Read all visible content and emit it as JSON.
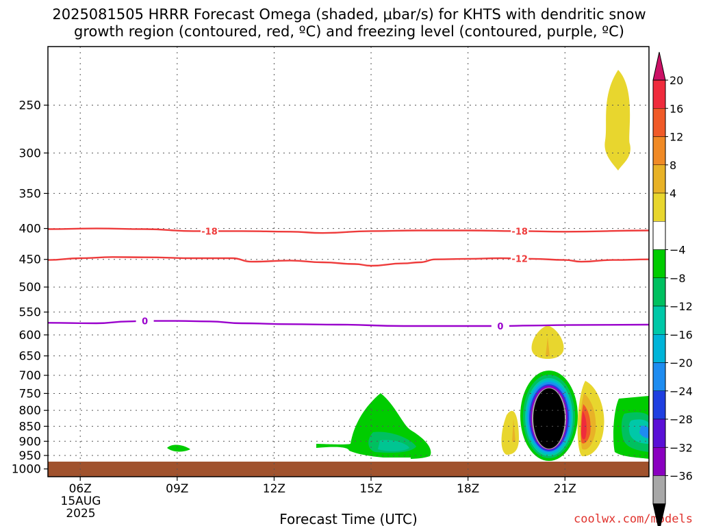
{
  "header": {
    "title_line1": "2025081505 HRRR Forecast Omega (shaded, μbar/s) for KHTS with dendritic snow",
    "title_line2": "growth region (contoured, red, ºC) and freezing level (contoured, purple, ºC)"
  },
  "footer": {
    "credit": "coolwx.com/models"
  },
  "chart_data": {
    "type": "time-height cross section",
    "xlabel": "Forecast Time (UTC)",
    "ylabel": "",
    "x_ticks": [
      {
        "label": "06Z",
        "hour": 6
      },
      {
        "label": "09Z",
        "hour": 9
      },
      {
        "label": "12Z",
        "hour": 12
      },
      {
        "label": "15Z",
        "hour": 15
      },
      {
        "label": "18Z",
        "hour": 18
      },
      {
        "label": "21Z",
        "hour": 21
      }
    ],
    "x_date_label": {
      "day": "15AUG",
      "year": "2025"
    },
    "xlim": [
      5.0,
      23.6
    ],
    "y_ticks": [
      250,
      300,
      350,
      400,
      450,
      500,
      550,
      600,
      650,
      700,
      750,
      800,
      850,
      900,
      950,
      1000
    ],
    "ylim": [
      1030,
      200
    ],
    "y_scale": "log-pressure",
    "grid": true,
    "colorbar": {
      "labels": [
        "20",
        "16",
        "12",
        "8",
        "4",
        "−4",
        "−8",
        "−12",
        "−16",
        "−20",
        "−24",
        "−28",
        "−32",
        "−36"
      ],
      "colors": [
        "#cc1166",
        "#ef2b3c",
        "#f05a28",
        "#f08a26",
        "#e8b227",
        "#e8d62e",
        "#ffffff",
        "#00cc00",
        "#00c060",
        "#00c8a8",
        "#00b4d8",
        "#1e8cf0",
        "#1f3fe0",
        "#5a10d6",
        "#8a00c0",
        "#a8a8a8",
        "#000000"
      ]
    },
    "contours": [
      {
        "name": "-18",
        "color": "#ee3b3b",
        "units": "ºC",
        "label_positions_hour": [
          10,
          19.6
        ],
        "points": [
          [
            5,
            401
          ],
          [
            6.5,
            400
          ],
          [
            8,
            401
          ],
          [
            9.5,
            404
          ],
          [
            11,
            404
          ],
          [
            12.5,
            405
          ],
          [
            13.5,
            407
          ],
          [
            15,
            404
          ],
          [
            16.5,
            403
          ],
          [
            18,
            403
          ],
          [
            19.5,
            404
          ],
          [
            21,
            405
          ],
          [
            23.6,
            403
          ]
        ]
      },
      {
        "name": "-12",
        "color": "#ee3b3b",
        "units": "ºC",
        "label_positions_hour": [
          19.6
        ],
        "points": [
          [
            5,
            451
          ],
          [
            6,
            448
          ],
          [
            7,
            446
          ],
          [
            8,
            446.5
          ],
          [
            9.5,
            448
          ],
          [
            10.7,
            448
          ],
          [
            11.3,
            454
          ],
          [
            12.5,
            452
          ],
          [
            13.5,
            455
          ],
          [
            14.5,
            458
          ],
          [
            15,
            461
          ],
          [
            16,
            457
          ],
          [
            16.5,
            455
          ],
          [
            17,
            450
          ],
          [
            18,
            449
          ],
          [
            19,
            448
          ],
          [
            20,
            449
          ],
          [
            21,
            451
          ],
          [
            21.5,
            454
          ],
          [
            22.5,
            451
          ],
          [
            23.6,
            450
          ]
        ]
      },
      {
        "name": "0",
        "color": "#9900cc",
        "units": "ºC",
        "label_positions_hour": [
          8,
          19
        ],
        "points": [
          [
            5,
            573
          ],
          [
            6.5,
            574
          ],
          [
            7.5,
            570
          ],
          [
            8,
            569
          ],
          [
            9,
            569
          ],
          [
            10,
            570
          ],
          [
            11,
            574
          ],
          [
            12.5,
            576
          ],
          [
            14,
            577
          ],
          [
            16,
            580
          ],
          [
            18,
            580
          ],
          [
            19,
            580
          ],
          [
            20,
            579
          ],
          [
            21,
            578
          ],
          [
            23.6,
            577
          ]
        ]
      }
    ],
    "surface_fill_color": "#a0522d"
  }
}
